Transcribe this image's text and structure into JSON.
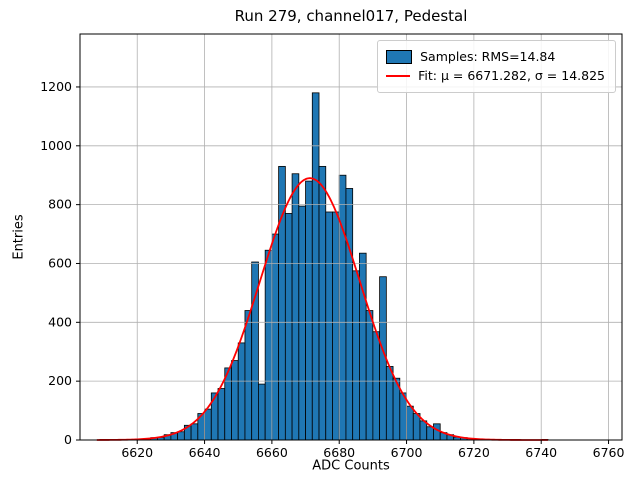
{
  "chart_data": {
    "type": "bar",
    "title": "Run 279, channel017, Pedestal",
    "xlabel": "ADC Counts",
    "ylabel": "Entries",
    "xlim": [
      6603,
      6764
    ],
    "ylim": [
      0,
      1380
    ],
    "xticks": [
      6620,
      6640,
      6660,
      6680,
      6700,
      6720,
      6740,
      6760
    ],
    "yticks": [
      0,
      200,
      400,
      600,
      800,
      1000,
      1200
    ],
    "grid": true,
    "colors": {
      "grid": "#b0b0b0",
      "frame": "#000000",
      "background": "#ffffff"
    },
    "histogram": {
      "label": "Samples: RMS=14.84",
      "rms": 14.84,
      "color": "#1f77b4",
      "edge_color": "#000000",
      "bin_start": 6608,
      "bin_width": 2,
      "counts": [
        0,
        0,
        0,
        1,
        1,
        2,
        3,
        5,
        8,
        9,
        18,
        25,
        28,
        50,
        55,
        90,
        105,
        160,
        175,
        245,
        270,
        330,
        440,
        605,
        190,
        645,
        700,
        930,
        770,
        905,
        795,
        880,
        1180,
        930,
        775,
        775,
        900,
        855,
        575,
        635,
        440,
        368,
        555,
        250,
        210,
        160,
        115,
        90,
        65,
        45,
        55,
        25,
        18,
        10,
        8,
        5,
        3,
        2,
        2,
        1,
        1,
        0,
        1,
        0,
        0,
        0,
        2
      ]
    },
    "fit": {
      "label": "Fit: μ = 6671.282, σ = 14.825",
      "type": "gaussian",
      "mu": 6671.282,
      "sigma": 14.825,
      "amplitude": 890,
      "x_min": 6608,
      "x_max": 6742,
      "color": "#ff0000"
    },
    "legend": {
      "position": "upper right",
      "entries": [
        "Samples: RMS=14.84",
        "Fit: μ = 6671.282, σ = 14.825"
      ]
    }
  }
}
